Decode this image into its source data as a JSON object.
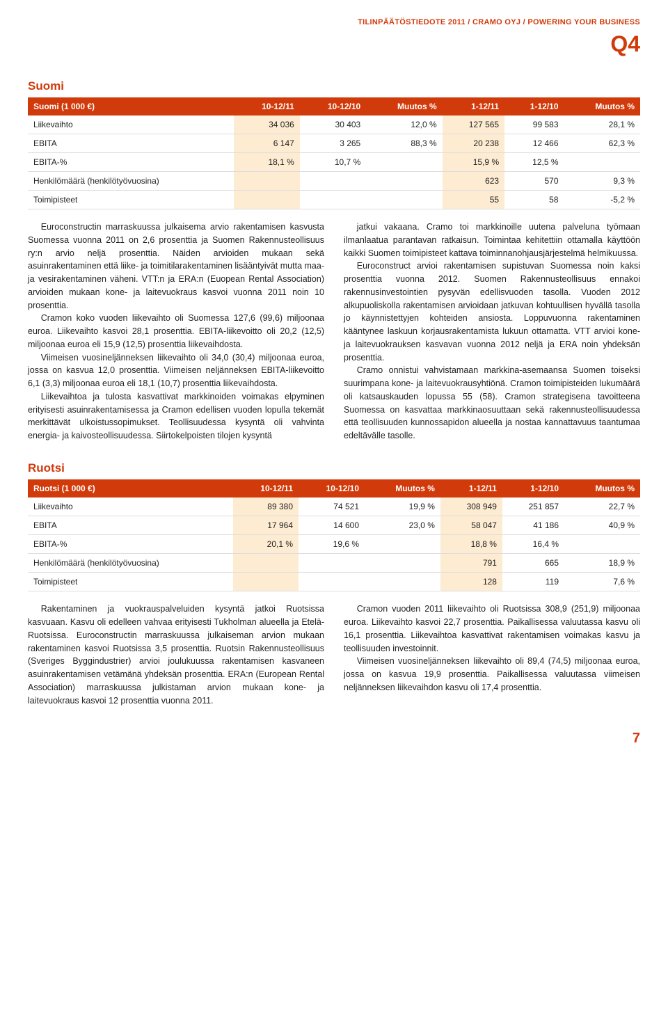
{
  "header": {
    "line": "TILINPÄÄTÖSTIEDOTE 2011 / CRAMO OYJ / POWERING YOUR BUSINESS",
    "quarter": "Q4",
    "header_color": "#d13a0a"
  },
  "section1": {
    "title": "Suomi",
    "table": {
      "header_bg": "#d13a0a",
      "highlight_bg": "#fdecd2",
      "columns": [
        "Suomi (1 000 €)",
        "10-12/11",
        "10-12/10",
        "Muutos %",
        "1-12/11",
        "1-12/10",
        "Muutos %"
      ],
      "rows": [
        {
          "label": "Liikevaihto",
          "c1": "34 036",
          "c2": "30 403",
          "c3": "12,0 %",
          "c4": "127 565",
          "c5": "99 583",
          "c6": "28,1 %"
        },
        {
          "label": "EBITA",
          "c1": "6 147",
          "c2": "3 265",
          "c3": "88,3 %",
          "c4": "20 238",
          "c5": "12 466",
          "c6": "62,3 %"
        },
        {
          "label": "EBITA-%",
          "c1": "18,1 %",
          "c2": "10,7 %",
          "c3": "",
          "c4": "15,9 %",
          "c5": "12,5 %",
          "c6": ""
        },
        {
          "label": "Henkilömäärä (henkilötyövuosina)",
          "c1": "",
          "c2": "",
          "c3": "",
          "c4": "623",
          "c5": "570",
          "c6": "9,3 %"
        },
        {
          "label": "Toimipisteet",
          "c1": "",
          "c2": "",
          "c3": "",
          "c4": "55",
          "c5": "58",
          "c6": "-5,2 %"
        }
      ]
    },
    "left_paras": [
      "Euroconstructin marraskuussa julkaisema arvio rakentamisen kasvusta Suomessa vuonna 2011 on 2,6 prosenttia ja Suomen Rakennusteollisuus ry:n arvio neljä prosenttia. Näiden arvioiden mukaan sekä asuinrakentaminen että liike- ja toimitilarakentaminen lisääntyivät mutta maa- ja vesirakentaminen väheni. VTT:n ja ERA:n (Euopean Rental Association) arvioiden mukaan kone- ja laitevuokraus kasvoi vuonna 2011 noin 10 prosenttia.",
      "Cramon koko vuoden liikevaihto oli Suomessa 127,6 (99,6) miljoonaa euroa. Liikevaihto kasvoi 28,1 prosenttia. EBITA-liikevoitto oli 20,2 (12,5) miljoonaa euroa eli 15,9 (12,5) prosenttia liikevaihdosta.",
      "Viimeisen vuosineljänneksen liikevaihto oli 34,0 (30,4) miljoonaa euroa, jossa on kasvua 12,0 prosenttia. Viimeisen neljänneksen EBITA-liikevoitto 6,1 (3,3) miljoonaa euroa eli 18,1 (10,7) prosenttia liikevaihdosta.",
      "Liikevaihtoa ja tulosta kasvattivat markkinoiden voimakas elpyminen erityisesti asuinrakentamisessa ja Cramon edellisen vuoden lopulla tekemät merkittävät ulkoistussopimukset. Teollisuudessa kysyntä oli vahvinta energia- ja kaivosteollisuudessa. Siirtokelpoisten tilojen kysyntä"
    ],
    "right_paras": [
      "jatkui vakaana. Cramo toi markkinoille uutena palveluna työmaan ilmanlaatua parantavan ratkaisun. Toimintaa kehitettiin ottamalla käyttöön kaikki Suomen toimipisteet kattava toiminnanohjausjärjestelmä helmikuussa.",
      "Euroconstruct arvioi rakentamisen supistuvan Suomessa noin kaksi prosenttia vuonna 2012. Suomen Rakennusteollisuus ennakoi rakennusinvestointien pysyvän edellisvuoden tasolla. Vuoden 2012 alkupuoliskolla rakentamisen arvioidaan jatkuvan kohtuullisen hyvällä tasolla jo käynnistettyjen kohteiden ansiosta. Loppuvuonna rakentaminen kääntynee laskuun korjausrakentamista lukuun ottamatta. VTT arvioi kone- ja laitevuokrauksen kasvavan vuonna 2012 neljä ja ERA noin yhdeksän prosenttia.",
      "Cramo onnistui vahvistamaan markkina-asemaansa Suomen toiseksi suurimpana kone- ja laitevuokrausyhtiönä. Cramon toimipisteiden lukumäärä oli katsauskauden lopussa 55 (58). Cramon strategisena tavoitteena Suomessa on kasvattaa markkinaosuuttaan sekä rakennusteollisuudessa että teollisuuden kunnossapidon alueella ja nostaa kannattavuus taantumaa edeltävälle tasolle."
    ]
  },
  "section2": {
    "title": "Ruotsi",
    "table": {
      "columns": [
        "Ruotsi (1 000 €)",
        "10-12/11",
        "10-12/10",
        "Muutos %",
        "1-12/11",
        "1-12/10",
        "Muutos %"
      ],
      "rows": [
        {
          "label": "Liikevaihto",
          "c1": "89 380",
          "c2": "74 521",
          "c3": "19,9 %",
          "c4": "308 949",
          "c5": "251 857",
          "c6": "22,7 %"
        },
        {
          "label": "EBITA",
          "c1": "17 964",
          "c2": "14 600",
          "c3": "23,0 %",
          "c4": "58 047",
          "c5": "41 186",
          "c6": "40,9 %"
        },
        {
          "label": "EBITA-%",
          "c1": "20,1 %",
          "c2": "19,6 %",
          "c3": "",
          "c4": "18,8 %",
          "c5": "16,4 %",
          "c6": ""
        },
        {
          "label": "Henkilömäärä (henkilötyövuosina)",
          "c1": "",
          "c2": "",
          "c3": "",
          "c4": "791",
          "c5": "665",
          "c6": "18,9 %"
        },
        {
          "label": "Toimipisteet",
          "c1": "",
          "c2": "",
          "c3": "",
          "c4": "128",
          "c5": "119",
          "c6": "7,6 %"
        }
      ]
    },
    "left_paras": [
      "Rakentaminen ja vuokrauspalveluiden kysyntä jatkoi Ruotsissa kasvuaan. Kasvu oli edelleen vahvaa erityisesti Tukholman alueella ja Etelä-Ruotsissa. Euroconstructin marraskuussa julkaiseman arvion mukaan rakentaminen kasvoi Ruotsissa 3,5 prosenttia. Ruotsin Rakennusteollisuus (Sveriges Byggindustrier) arvioi joulukuussa rakentamisen kasvaneen asuinrakentamisen vetämänä yhdeksän prosenttia. ERA:n (European Rental Association) marraskuussa julkistaman arvion mukaan kone- ja laitevuokraus kasvoi 12 prosenttia vuonna 2011."
    ],
    "right_paras": [
      "Cramon vuoden 2011 liikevaihto oli Ruotsissa 308,9 (251,9) miljoonaa euroa. Liikevaihto kasvoi 22,7 prosenttia. Paikallisessa valuutassa kasvu oli 16,1 prosenttia. Liikevaihtoa kasvattivat rakentamisen voimakas kasvu ja teollisuuden investoinnit.",
      "Viimeisen vuosineljänneksen liikevaihto oli 89,4 (74,5) miljoonaa euroa, jossa on kasvua 19,9 prosenttia. Paikallisessa valuutassa viimeisen neljänneksen liikevaihdon kasvu oli 17,4 prosenttia."
    ]
  },
  "pagenum": "7"
}
